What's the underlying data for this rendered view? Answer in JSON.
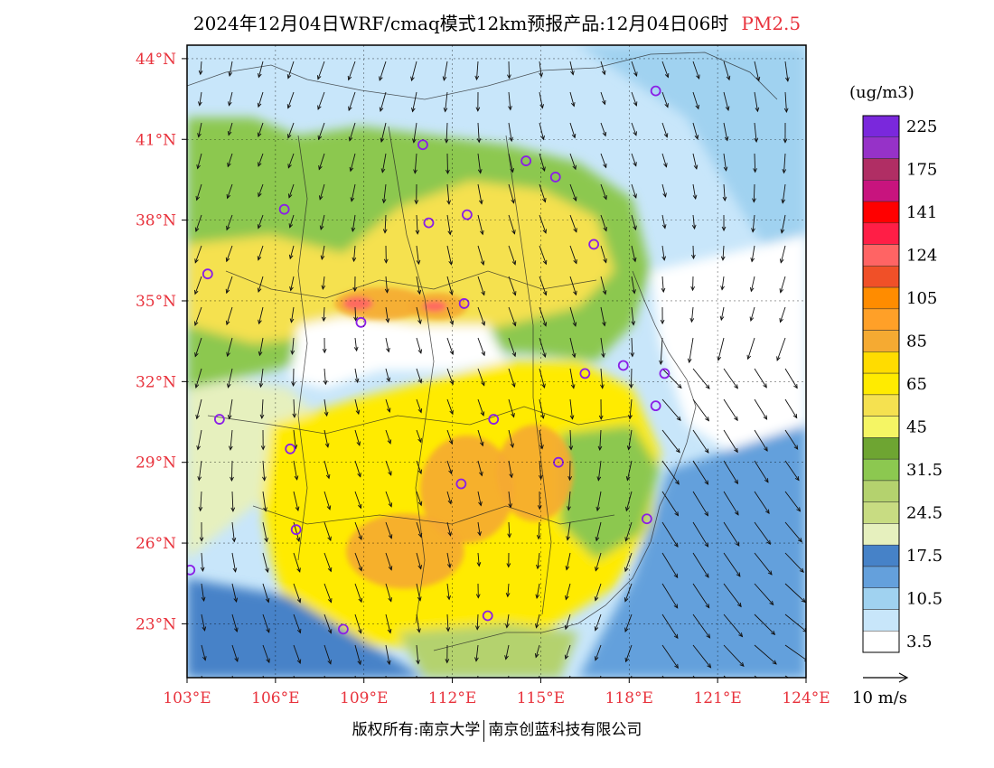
{
  "title": {
    "main": "2024年12月04日WRF/cmaq模式12km预报产品:12月04日06时",
    "variable": "PM2.5"
  },
  "colors": {
    "accent": "#e8323c",
    "frame": "#000000",
    "city_marker": "#8a1ee6"
  },
  "map": {
    "lon_range": [
      103,
      124
    ],
    "lat_range": [
      21,
      44.5
    ],
    "lat_ticks": [
      {
        "value": 44,
        "label": "44°N"
      },
      {
        "value": 41,
        "label": "41°N"
      },
      {
        "value": 38,
        "label": "38°N"
      },
      {
        "value": 35,
        "label": "35°N"
      },
      {
        "value": 32,
        "label": "32°N"
      },
      {
        "value": 29,
        "label": "29°N"
      },
      {
        "value": 26,
        "label": "26°N"
      },
      {
        "value": 23,
        "label": "23°N"
      }
    ],
    "lon_ticks": [
      {
        "value": 103,
        "label": "103°E"
      },
      {
        "value": 106,
        "label": "106°E"
      },
      {
        "value": 109,
        "label": "109°E"
      },
      {
        "value": 112,
        "label": "112°E"
      },
      {
        "value": 115,
        "label": "115°E"
      },
      {
        "value": 118,
        "label": "118°E"
      },
      {
        "value": 121,
        "label": "121°E"
      },
      {
        "value": 124,
        "label": "124°E"
      }
    ],
    "cities": [
      {
        "lon": 118.9,
        "lat": 42.8
      },
      {
        "lon": 111.0,
        "lat": 40.8
      },
      {
        "lon": 114.5,
        "lat": 40.2
      },
      {
        "lon": 115.5,
        "lat": 39.6
      },
      {
        "lon": 106.3,
        "lat": 38.4
      },
      {
        "lon": 112.5,
        "lat": 38.2
      },
      {
        "lon": 111.2,
        "lat": 37.9
      },
      {
        "lon": 116.8,
        "lat": 37.1
      },
      {
        "lon": 103.7,
        "lat": 36.0
      },
      {
        "lon": 112.4,
        "lat": 34.9
      },
      {
        "lon": 108.9,
        "lat": 34.2
      },
      {
        "lon": 117.8,
        "lat": 32.6
      },
      {
        "lon": 116.5,
        "lat": 32.3
      },
      {
        "lon": 119.2,
        "lat": 32.3
      },
      {
        "lon": 118.9,
        "lat": 31.1
      },
      {
        "lon": 113.4,
        "lat": 30.6
      },
      {
        "lon": 104.1,
        "lat": 30.6
      },
      {
        "lon": 106.5,
        "lat": 29.5
      },
      {
        "lon": 115.6,
        "lat": 29.0
      },
      {
        "lon": 112.3,
        "lat": 28.2
      },
      {
        "lon": 118.6,
        "lat": 26.9
      },
      {
        "lon": 106.7,
        "lat": 26.5
      },
      {
        "lon": 103.1,
        "lat": 25.0
      },
      {
        "lon": 113.2,
        "lat": 23.3
      },
      {
        "lon": 108.3,
        "lat": 22.8
      }
    ],
    "hotspots": [
      {
        "lon": 112.5,
        "lat": 28.0,
        "rx": 1.6,
        "ry": 2.0,
        "level": 85
      },
      {
        "lon": 114.8,
        "lat": 28.6,
        "rx": 1.3,
        "ry": 1.8,
        "level": 85
      },
      {
        "lon": 110.4,
        "lat": 25.7,
        "rx": 2.0,
        "ry": 1.4,
        "level": 85
      },
      {
        "lon": 109.6,
        "lat": 34.9,
        "rx": 1.6,
        "ry": 0.6,
        "level": 85
      },
      {
        "lon": 111.5,
        "lat": 34.8,
        "rx": 1.0,
        "ry": 0.5,
        "level": 85
      },
      {
        "lon": 108.8,
        "lat": 34.9,
        "rx": 0.5,
        "ry": 0.25,
        "level": 124
      },
      {
        "lon": 111.4,
        "lat": 34.8,
        "rx": 0.4,
        "ry": 0.2,
        "level": 124
      }
    ]
  },
  "legend": {
    "unit": "(ug/m3)",
    "levels": [
      {
        "color": "#7a28dc",
        "label": "225"
      },
      {
        "color": "#9632c8",
        "label": ""
      },
      {
        "color": "#b02e64",
        "label": "175"
      },
      {
        "color": "#c8147e",
        "label": ""
      },
      {
        "color": "#ff0000",
        "label": "141"
      },
      {
        "color": "#ff1e46",
        "label": ""
      },
      {
        "color": "#ff6464",
        "label": "124"
      },
      {
        "color": "#f05028",
        "label": ""
      },
      {
        "color": "#ff8c00",
        "label": "105"
      },
      {
        "color": "#ffa028",
        "label": ""
      },
      {
        "color": "#f5aa32",
        "label": "85"
      },
      {
        "color": "#ffdc00",
        "label": ""
      },
      {
        "color": "#ffeb00",
        "label": "65"
      },
      {
        "color": "#f5e150",
        "label": ""
      },
      {
        "color": "#f5f564",
        "label": "45"
      },
      {
        "color": "#6ea532",
        "label": ""
      },
      {
        "color": "#8cc850",
        "label": "31.5"
      },
      {
        "color": "#b4d26e",
        "label": ""
      },
      {
        "color": "#c8dc82",
        "label": "24.5"
      },
      {
        "color": "#e6f0be",
        "label": ""
      },
      {
        "color": "#4682c8",
        "label": "17.5"
      },
      {
        "color": "#64a0dc",
        "label": ""
      },
      {
        "color": "#a0d2f0",
        "label": "10.5"
      },
      {
        "color": "#c8e6fa",
        "label": ""
      },
      {
        "color": "#ffffff",
        "label": "3.5"
      }
    ]
  },
  "wind_reference": {
    "label": "10 m/s"
  },
  "copyright": {
    "left": "版权所有:南京大学",
    "right": "南京创蓝科技有限公司"
  }
}
